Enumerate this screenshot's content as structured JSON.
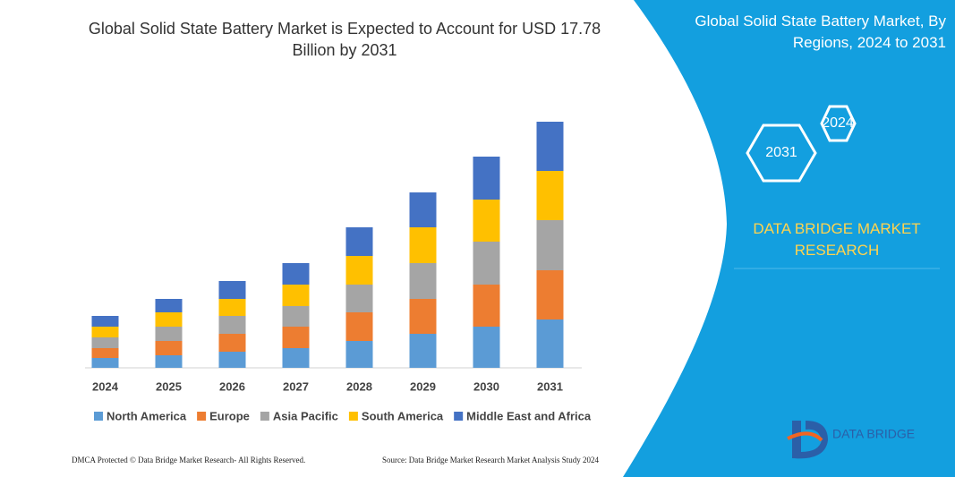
{
  "chart_data": {
    "type": "bar",
    "stacked": true,
    "title": "Global Solid State Battery Market is Expected to Account for USD 17.78 Billion by 2031",
    "categories": [
      "2024",
      "2025",
      "2026",
      "2027",
      "2028",
      "2029",
      "2030",
      "2031"
    ],
    "series": [
      {
        "name": "North America",
        "color": "#5b9bd5",
        "values": [
          11,
          14,
          18,
          22,
          30,
          38,
          46,
          54
        ]
      },
      {
        "name": "Europe",
        "color": "#ed7d31",
        "values": [
          11,
          16,
          20,
          24,
          32,
          39,
          47,
          55
        ]
      },
      {
        "name": "Asia Pacific",
        "color": "#a5a5a5",
        "values": [
          12,
          16,
          20,
          23,
          31,
          40,
          48,
          56
        ]
      },
      {
        "name": "South America",
        "color": "#ffc000",
        "values": [
          12,
          16,
          19,
          24,
          32,
          40,
          47,
          55
        ]
      },
      {
        "name": "Middle East and Africa",
        "color": "#4472c4",
        "values": [
          12,
          15,
          20,
          24,
          32,
          39,
          48,
          55
        ]
      }
    ]
  },
  "panel": {
    "title": "Global Solid State Battery Market, By Regions, 2024 to 2031",
    "hex_front": "2031",
    "hex_back": "2024",
    "brand": "DATA BRIDGE MARKET RESEARCH",
    "logo": "DATA BRIDGE"
  },
  "footer": {
    "left": "DMCA Protected © Data Bridge Market Research- All Rights Reserved.",
    "right": "Source: Data Bridge Market Research  Market Analysis Study 2024"
  }
}
